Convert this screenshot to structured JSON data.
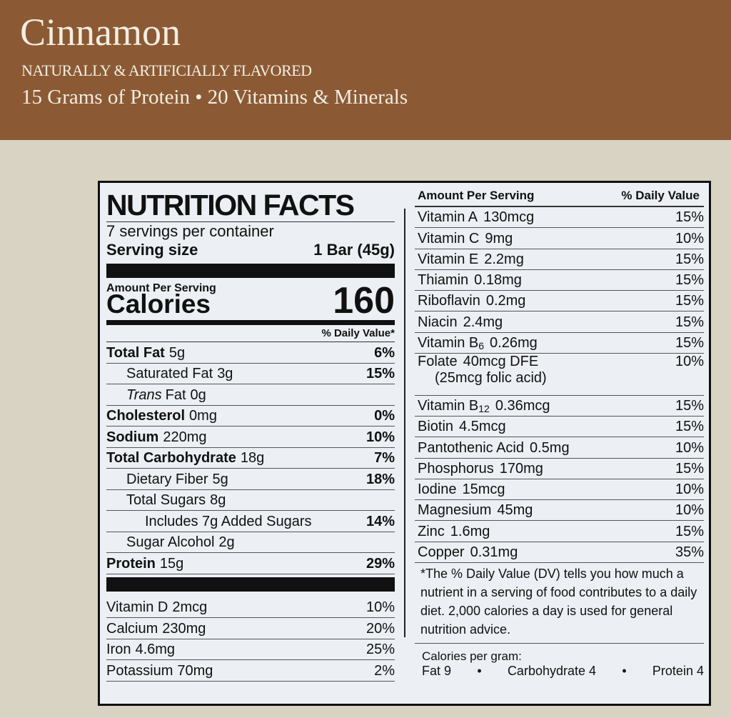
{
  "header": {
    "title": "Cinnamon",
    "subtitle": "NATURALLY & ARTIFICIALLY FLAVORED",
    "tagline": "15 Grams of Protein • 20 Vitamins & Minerals"
  },
  "label": {
    "heading": "NUTRITION FACTS",
    "servings": "7 servings per container",
    "serving_label": "Serving size",
    "serving_value": "1 Bar (45g)",
    "amount_label": "Amount Per Serving",
    "calories_label": "Calories",
    "calories_value": "160",
    "dv_header": "% Daily Value*",
    "rows": [
      {
        "name": "Total Fat",
        "amount": "5g",
        "dv": "6%"
      },
      {
        "name": "Saturated Fat",
        "amount": "3g",
        "dv": "15%"
      },
      {
        "italic": "Trans",
        "name": "Fat",
        "amount": "0g"
      },
      {
        "name": "Cholesterol",
        "amount": "0mg",
        "dv": "0%"
      },
      {
        "name": "Sodium",
        "amount": "220mg",
        "dv": "10%"
      },
      {
        "name": "Total Carbohydrate",
        "amount": "18g",
        "dv": "7%"
      },
      {
        "name": "Dietary Fiber",
        "amount": "5g",
        "dv": "18%"
      },
      {
        "name": "Total Sugars",
        "amount": "8g"
      },
      {
        "name": "Includes 7g Added Sugars",
        "dv": "14%"
      },
      {
        "name": "Sugar Alcohol",
        "amount": "2g"
      },
      {
        "name": "Protein",
        "amount": "15g",
        "dv": "29%"
      }
    ],
    "minerals": [
      {
        "name": "Vitamin D",
        "amount": "2mcg",
        "dv": "10%"
      },
      {
        "name": "Calcium",
        "amount": "230mg",
        "dv": "20%"
      },
      {
        "name": "Iron",
        "amount": "4.6mg",
        "dv": "25%"
      },
      {
        "name": "Potassium",
        "amount": "70mg",
        "dv": "2%"
      }
    ],
    "right_amount_label": "Amount Per Serving",
    "right_dv_label": "% Daily Value",
    "vitamins": [
      {
        "name": "Vitamin A",
        "amount": "130mcg",
        "dv": "15%"
      },
      {
        "name": "Vitamin C",
        "amount": "9mg",
        "dv": "10%"
      },
      {
        "name": "Vitamin E",
        "amount": "2.2mg",
        "dv": "15%"
      },
      {
        "name": "Thiamin",
        "amount": "0.18mg",
        "dv": "15%"
      },
      {
        "name": "Riboflavin",
        "amount": "0.2mg",
        "dv": "15%"
      },
      {
        "name": "Niacin",
        "amount": "2.4mg",
        "dv": "15%"
      },
      {
        "name": "Vitamin B",
        "sub": "6",
        "amount": "0.26mg",
        "dv": "15%"
      },
      {
        "name": "Folate",
        "amount": "40mcg DFE",
        "dv": "10%",
        "note": "(25mcg folic acid)"
      },
      {
        "name": "Vitamin B",
        "sub": "12",
        "amount": "0.36mcg",
        "dv": "15%"
      },
      {
        "name": "Biotin",
        "amount": "4.5mcg",
        "dv": "15%"
      },
      {
        "name": "Pantothenic Acid",
        "amount": "0.5mg",
        "dv": "10%"
      },
      {
        "name": "Phosphorus",
        "amount": "170mg",
        "dv": "15%"
      },
      {
        "name": "Iodine",
        "amount": "15mcg",
        "dv": "10%"
      },
      {
        "name": "Magnesium",
        "amount": "45mg",
        "dv": "10%"
      },
      {
        "name": "Zinc",
        "amount": "1.6mg",
        "dv": "15%"
      },
      {
        "name": "Copper",
        "amount": "0.31mg",
        "dv": "35%"
      }
    ],
    "footnote": "*The % Daily Value (DV) tells you how much a nutrient in a serving of food contributes to a daily diet. 2,000 calories a day is used for general nutrition advice.",
    "cal_per_gram": "Calories per gram:",
    "cal_fat": "Fat 9",
    "cal_carb": "Carbohydrate 4",
    "cal_protein": "Protein 4"
  }
}
